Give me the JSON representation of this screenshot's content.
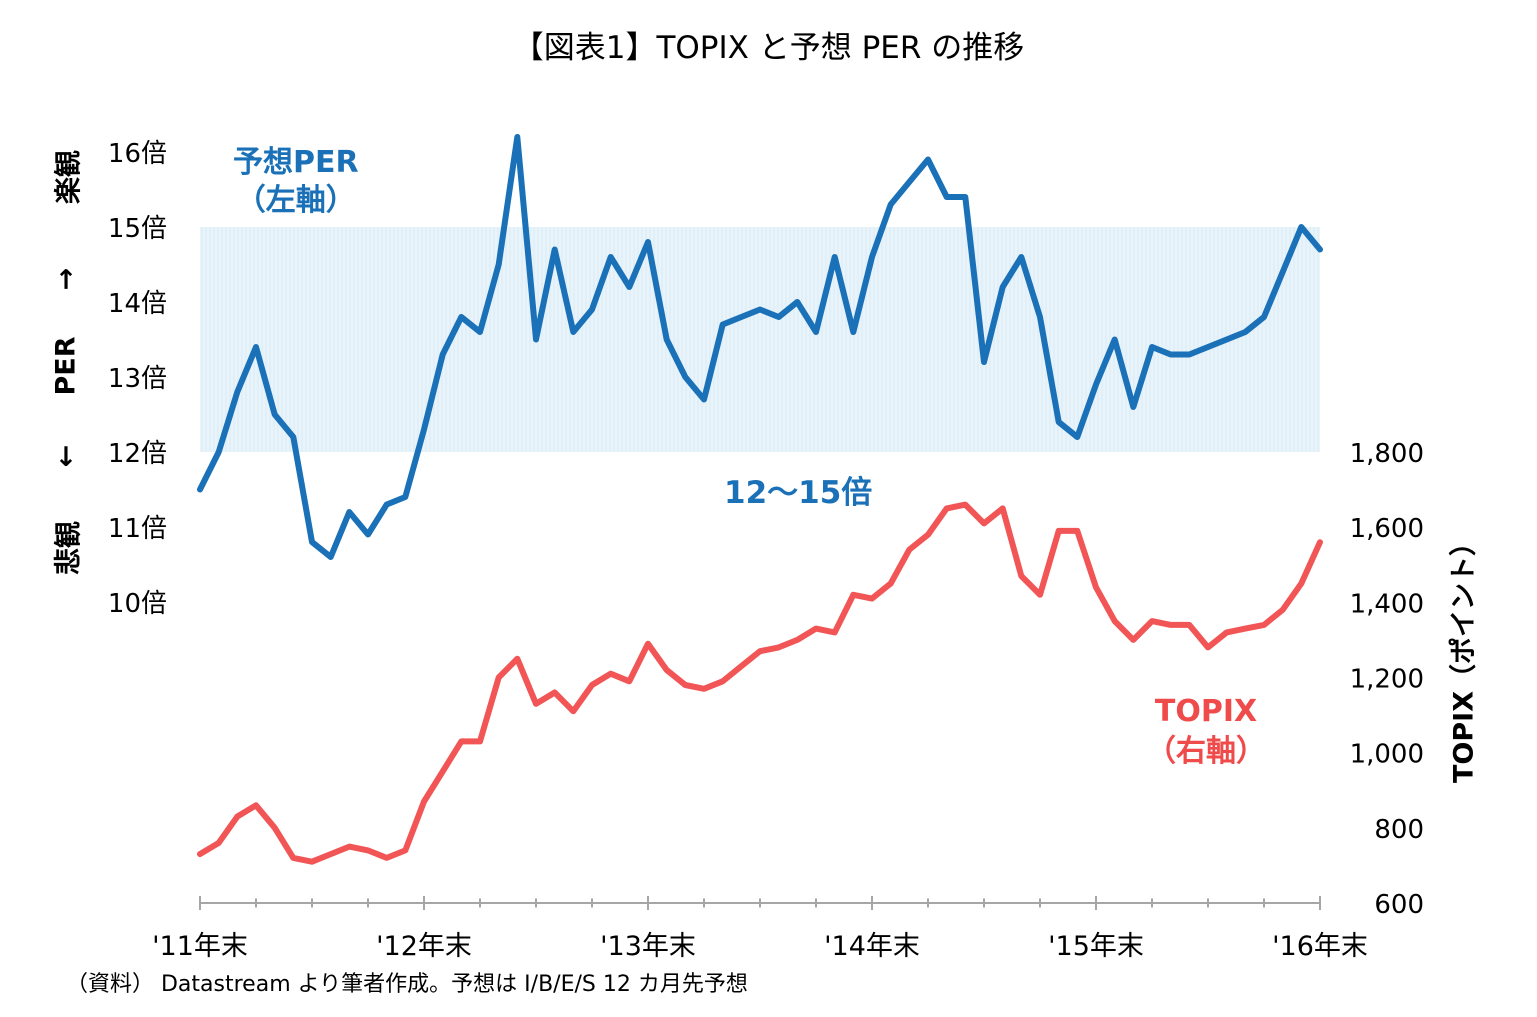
{
  "title": "【図表1】TOPIX と予想 PER の推移",
  "source": "（資料） Datastream より筆者作成。予想は I/B/E/S 12 カ月先予想",
  "left_axis_label": {
    "top": "楽観",
    "arrow_up": "→",
    "middle": "PER",
    "arrow_down": "→",
    "bottom": "悲観"
  },
  "annotations": {
    "per_line1": "予想PER",
    "per_line2": "（左軸）",
    "band": "12～15倍",
    "topix_line1": "TOPIX",
    "topix_line2": "（右軸）"
  },
  "colors": {
    "per": "#1a71b8",
    "topix": "#f25555",
    "band": "#d7e9f7"
  },
  "chart_data": {
    "type": "line",
    "title": "【図表1】TOPIX と予想 PER の推移",
    "x_tick_labels": [
      "'11年末",
      "'12年末",
      "'13年末",
      "'14年末",
      "'15年末",
      "'16年末"
    ],
    "y_left": {
      "ticks": [
        10,
        11,
        12,
        13,
        14,
        15,
        16
      ],
      "tick_labels": [
        "10倍",
        "11倍",
        "12倍",
        "13倍",
        "14倍",
        "15倍",
        "16倍"
      ]
    },
    "y_right": {
      "label": "TOPIX（ポイント）",
      "ticks": [
        600,
        800,
        1000,
        1200,
        1400,
        1600,
        1800
      ],
      "tick_labels": [
        "600",
        "800",
        "1,000",
        "1,200",
        "1,400",
        "1,600",
        "1,800"
      ]
    },
    "band": {
      "axis": "left",
      "from": 12,
      "to": 15
    },
    "series": [
      {
        "name": "予想PER",
        "axis": "left",
        "x": [
          "2011-12",
          "2012-01",
          "2012-02",
          "2012-03",
          "2012-04",
          "2012-05",
          "2012-06",
          "2012-07",
          "2012-08",
          "2012-09",
          "2012-10",
          "2012-11",
          "2012-12",
          "2013-01",
          "2013-02",
          "2013-03",
          "2013-04",
          "2013-05",
          "2013-06",
          "2013-07",
          "2013-08",
          "2013-09",
          "2013-10",
          "2013-11",
          "2013-12",
          "2014-01",
          "2014-02",
          "2014-03",
          "2014-04",
          "2014-05",
          "2014-06",
          "2014-07",
          "2014-08",
          "2014-09",
          "2014-10",
          "2014-11",
          "2014-12",
          "2015-01",
          "2015-02",
          "2015-03",
          "2015-04",
          "2015-05",
          "2015-06",
          "2015-07",
          "2015-08",
          "2015-09",
          "2015-10",
          "2015-11",
          "2015-12",
          "2016-01",
          "2016-02",
          "2016-03",
          "2016-04",
          "2016-05",
          "2016-06",
          "2016-07",
          "2016-08",
          "2016-09",
          "2016-10",
          "2016-11",
          "2016-12"
        ],
        "values": [
          11.5,
          12.0,
          12.8,
          13.4,
          12.5,
          12.2,
          10.8,
          10.6,
          11.2,
          10.9,
          11.3,
          11.4,
          12.3,
          13.3,
          13.8,
          13.6,
          14.5,
          16.2,
          13.5,
          14.7,
          13.6,
          13.9,
          14.6,
          14.2,
          14.8,
          13.5,
          13.0,
          12.7,
          13.7,
          13.8,
          13.9,
          13.8,
          14.0,
          13.6,
          14.6,
          13.6,
          14.6,
          15.3,
          15.6,
          15.9,
          15.4,
          15.4,
          13.2,
          14.2,
          14.6,
          13.8,
          12.4,
          12.2,
          12.9,
          13.5,
          12.6,
          13.4,
          13.3,
          13.3,
          13.4,
          13.5,
          13.6,
          13.8,
          14.4,
          15.0,
          14.7
        ]
      },
      {
        "name": "TOPIX",
        "axis": "right",
        "x": [
          "2011-12",
          "2012-01",
          "2012-02",
          "2012-03",
          "2012-04",
          "2012-05",
          "2012-06",
          "2012-07",
          "2012-08",
          "2012-09",
          "2012-10",
          "2012-11",
          "2012-12",
          "2013-01",
          "2013-02",
          "2013-03",
          "2013-04",
          "2013-05",
          "2013-06",
          "2013-07",
          "2013-08",
          "2013-09",
          "2013-10",
          "2013-11",
          "2013-12",
          "2014-01",
          "2014-02",
          "2014-03",
          "2014-04",
          "2014-05",
          "2014-06",
          "2014-07",
          "2014-08",
          "2014-09",
          "2014-10",
          "2014-11",
          "2014-12",
          "2015-01",
          "2015-02",
          "2015-03",
          "2015-04",
          "2015-05",
          "2015-06",
          "2015-07",
          "2015-08",
          "2015-09",
          "2015-10",
          "2015-11",
          "2015-12",
          "2016-01",
          "2016-02",
          "2016-03",
          "2016-04",
          "2016-05",
          "2016-06",
          "2016-07",
          "2016-08",
          "2016-09",
          "2016-10",
          "2016-11",
          "2016-12"
        ],
        "values": [
          730,
          760,
          830,
          860,
          800,
          720,
          710,
          730,
          750,
          740,
          720,
          740,
          870,
          950,
          1030,
          1030,
          1200,
          1250,
          1130,
          1160,
          1110,
          1180,
          1210,
          1190,
          1290,
          1220,
          1180,
          1170,
          1190,
          1230,
          1270,
          1280,
          1300,
          1330,
          1320,
          1420,
          1410,
          1450,
          1540,
          1580,
          1650,
          1660,
          1610,
          1650,
          1470,
          1420,
          1590,
          1590,
          1440,
          1350,
          1300,
          1350,
          1340,
          1340,
          1280,
          1320,
          1330,
          1340,
          1380,
          1450,
          1560
        ]
      }
    ]
  }
}
